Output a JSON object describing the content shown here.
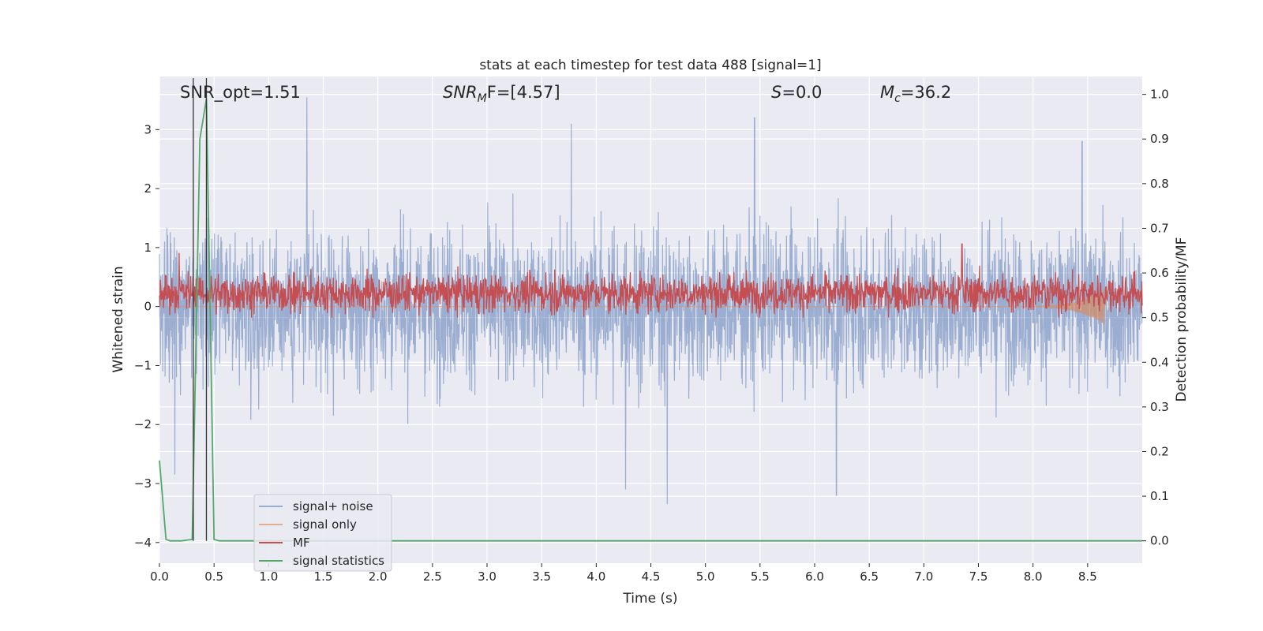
{
  "chart_data": {
    "type": "line",
    "title": "stats at each timestep for test data 488 [signal=1]",
    "xlabel": "Time (s)",
    "ylabel_left": "Whitened strain",
    "ylabel_right": "Detection probability/MF",
    "xlim": [
      0.0,
      9.0
    ],
    "ylim_left": [
      -4.35,
      3.9
    ],
    "ylim_right": [
      -0.05,
      1.04
    ],
    "xticks": [
      "0.0",
      "0.5",
      "1.0",
      "1.5",
      "2.0",
      "2.5",
      "3.0",
      "3.5",
      "4.0",
      "4.5",
      "5.0",
      "5.5",
      "6.0",
      "6.5",
      "7.0",
      "7.5",
      "8.0",
      "8.5"
    ],
    "yticks_left": [
      "3",
      "2",
      "1",
      "0",
      "−1",
      "−2",
      "−3",
      "−4"
    ],
    "yticks_left_values": [
      3,
      2,
      1,
      0,
      -1,
      -2,
      -3,
      -4
    ],
    "yticks_right": [
      "1.0",
      "0.9",
      "0.8",
      "0.7",
      "0.6",
      "0.5",
      "0.4",
      "0.3",
      "0.2",
      "0.1",
      "0.0"
    ],
    "yticks_right_values": [
      1.0,
      0.9,
      0.8,
      0.7,
      0.6,
      0.5,
      0.4,
      0.3,
      0.2,
      0.1,
      0.0
    ],
    "grid": true,
    "legend_position": "bottom-left",
    "annotations": {
      "snr_opt": "SNR_opt=1.51",
      "snr_mf_main": "SNR",
      "snr_mf_sub": "M",
      "snr_mf_rest": "F=[4.57]",
      "s_italic": "S",
      "s_rest": "=0.0",
      "mc_main": "M",
      "mc_sub": "c",
      "mc_rest": "=36.2"
    },
    "vertical_markers_x": [
      0.31,
      0.43
    ],
    "series": [
      {
        "name": "signal+ noise",
        "color": "#4c72b0",
        "alpha": 0.5,
        "axis": "left",
        "kind": "noise",
        "x_range": [
          0.0,
          9.0
        ],
        "approx_range": [
          -3.35,
          3.55
        ],
        "notable_peaks": [
          [
            1.35,
            3.55
          ],
          [
            3.77,
            3.1
          ],
          [
            5.45,
            3.2
          ],
          [
            8.45,
            2.8
          ]
        ],
        "notable_troughs": [
          [
            4.65,
            -3.35
          ],
          [
            4.27,
            -3.1
          ],
          [
            6.2,
            -3.2
          ],
          [
            0.14,
            -2.85
          ]
        ]
      },
      {
        "name": "signal only",
        "color": "#dd8452",
        "alpha": 0.6,
        "axis": "left",
        "kind": "chirp",
        "x_range": [
          7.9,
          8.66
        ],
        "peak_amplitude": 0.3
      },
      {
        "name": "MF",
        "color": "#c44e52",
        "axis": "right",
        "kind": "mf",
        "approx_range": [
          0.5,
          0.64
        ],
        "notable_peaks": [
          [
            7.35,
            0.665
          ],
          [
            0.18,
            0.645
          ]
        ]
      },
      {
        "name": "signal statistics",
        "color": "#55a868",
        "axis": "right",
        "kind": "step",
        "x": [
          0.0,
          0.06,
          0.1,
          0.2,
          0.3,
          0.37,
          0.43,
          0.5,
          0.55,
          9.0
        ],
        "y": [
          0.18,
          0.003,
          0.0,
          0.0,
          0.003,
          0.9,
          0.99,
          0.003,
          0.0,
          0.0
        ]
      }
    ]
  }
}
